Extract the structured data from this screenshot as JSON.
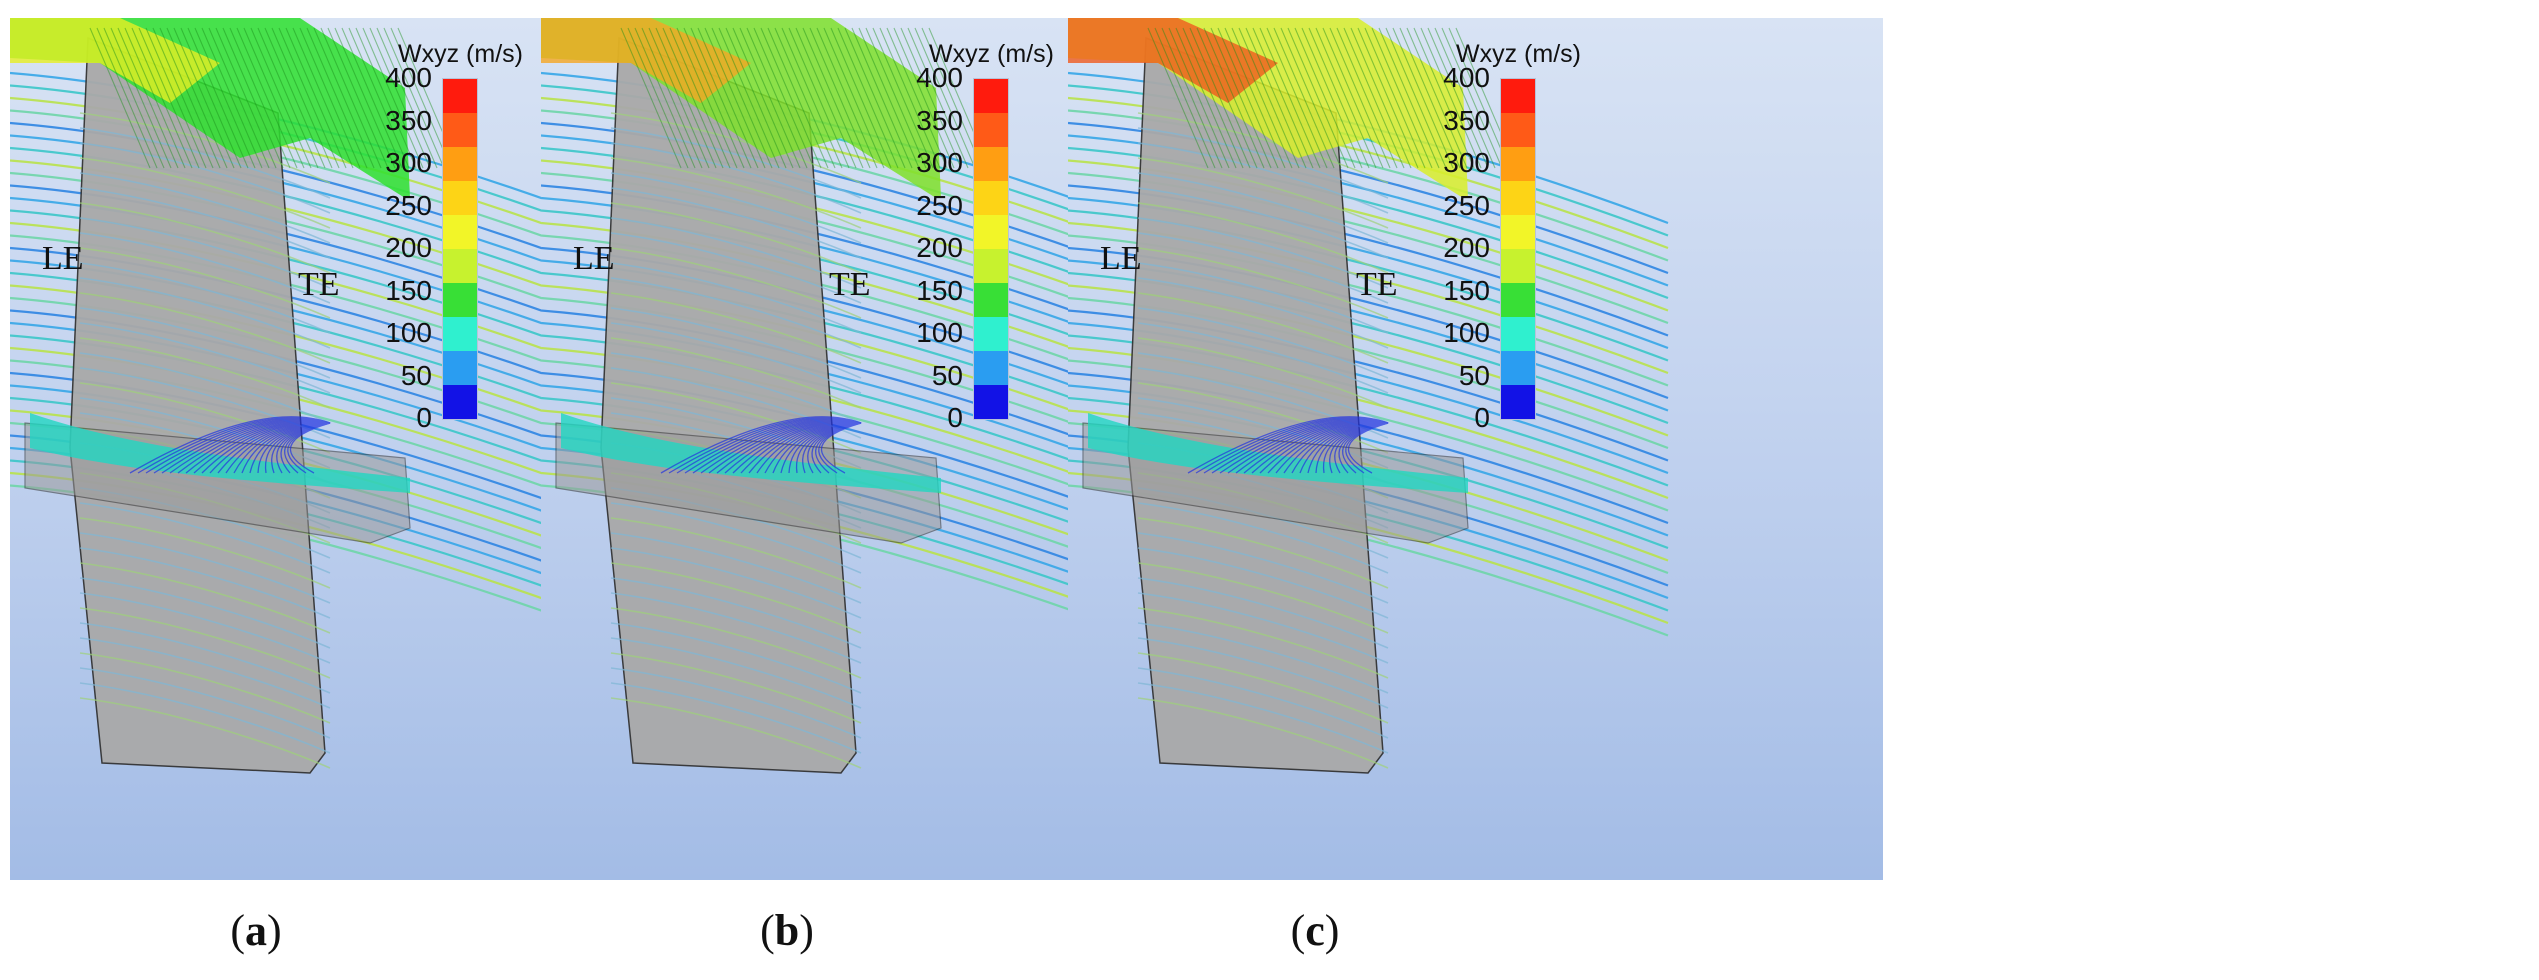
{
  "panels": [
    {
      "caption_open": "(",
      "caption_letter": "a",
      "caption_close": ")",
      "le_label": "LE",
      "te_label": "TE",
      "tip_color": "#2ee02e",
      "tip_lead_color": "#e7ef23"
    },
    {
      "caption_open": "(",
      "caption_letter": "b",
      "caption_close": ")",
      "le_label": "LE",
      "te_label": "TE",
      "tip_color": "#7fe02a",
      "tip_lead_color": "#f5a623"
    },
    {
      "caption_open": "(",
      "caption_letter": "c",
      "caption_close": ")",
      "le_label": "LE",
      "te_label": "TE",
      "tip_color": "#d9ee2a",
      "tip_lead_color": "#ef5a1e"
    }
  ],
  "colorbar": {
    "title": "Wxyz (m/s)",
    "ticks": [
      "400",
      "350",
      "300",
      "250",
      "200",
      "150",
      "100",
      "50",
      "0"
    ],
    "colors": [
      "#ff1b0d",
      "#ff5a17",
      "#ff9e12",
      "#fdd416",
      "#f2f528",
      "#c7f22e",
      "#38df36",
      "#2ff0cf",
      "#2a9df1",
      "#1212e6"
    ]
  }
}
